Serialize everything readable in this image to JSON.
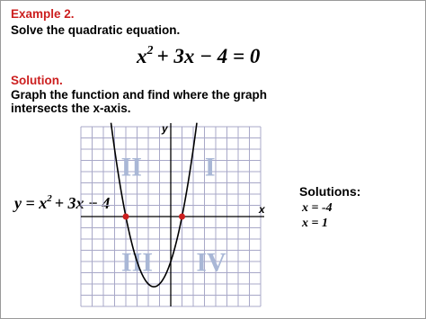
{
  "header": {
    "example": "Example 2.",
    "prompt": "Solve the quadratic equation."
  },
  "equation": {
    "base": "x",
    "exponent": "2",
    "rest": "+ 3x − 4 = 0"
  },
  "solution": {
    "heading": "Solution.",
    "line1": "Graph the function and find where the graph",
    "line2": "intersects the x-axis."
  },
  "function_label": {
    "lhs": "y = x",
    "exponent": "2",
    "rest": "+ 3x − 4"
  },
  "graph": {
    "xlim": [
      -8,
      8
    ],
    "ylim": [
      -8,
      8
    ],
    "x_label": "x",
    "y_label": "y",
    "roots": [
      -4,
      1
    ],
    "quadrants": [
      "I",
      "II",
      "III",
      "IV"
    ],
    "point_color": "#cc1f1f"
  },
  "answers": {
    "heading": "Solutions:",
    "items": [
      "x = -4",
      "x = 1"
    ]
  }
}
